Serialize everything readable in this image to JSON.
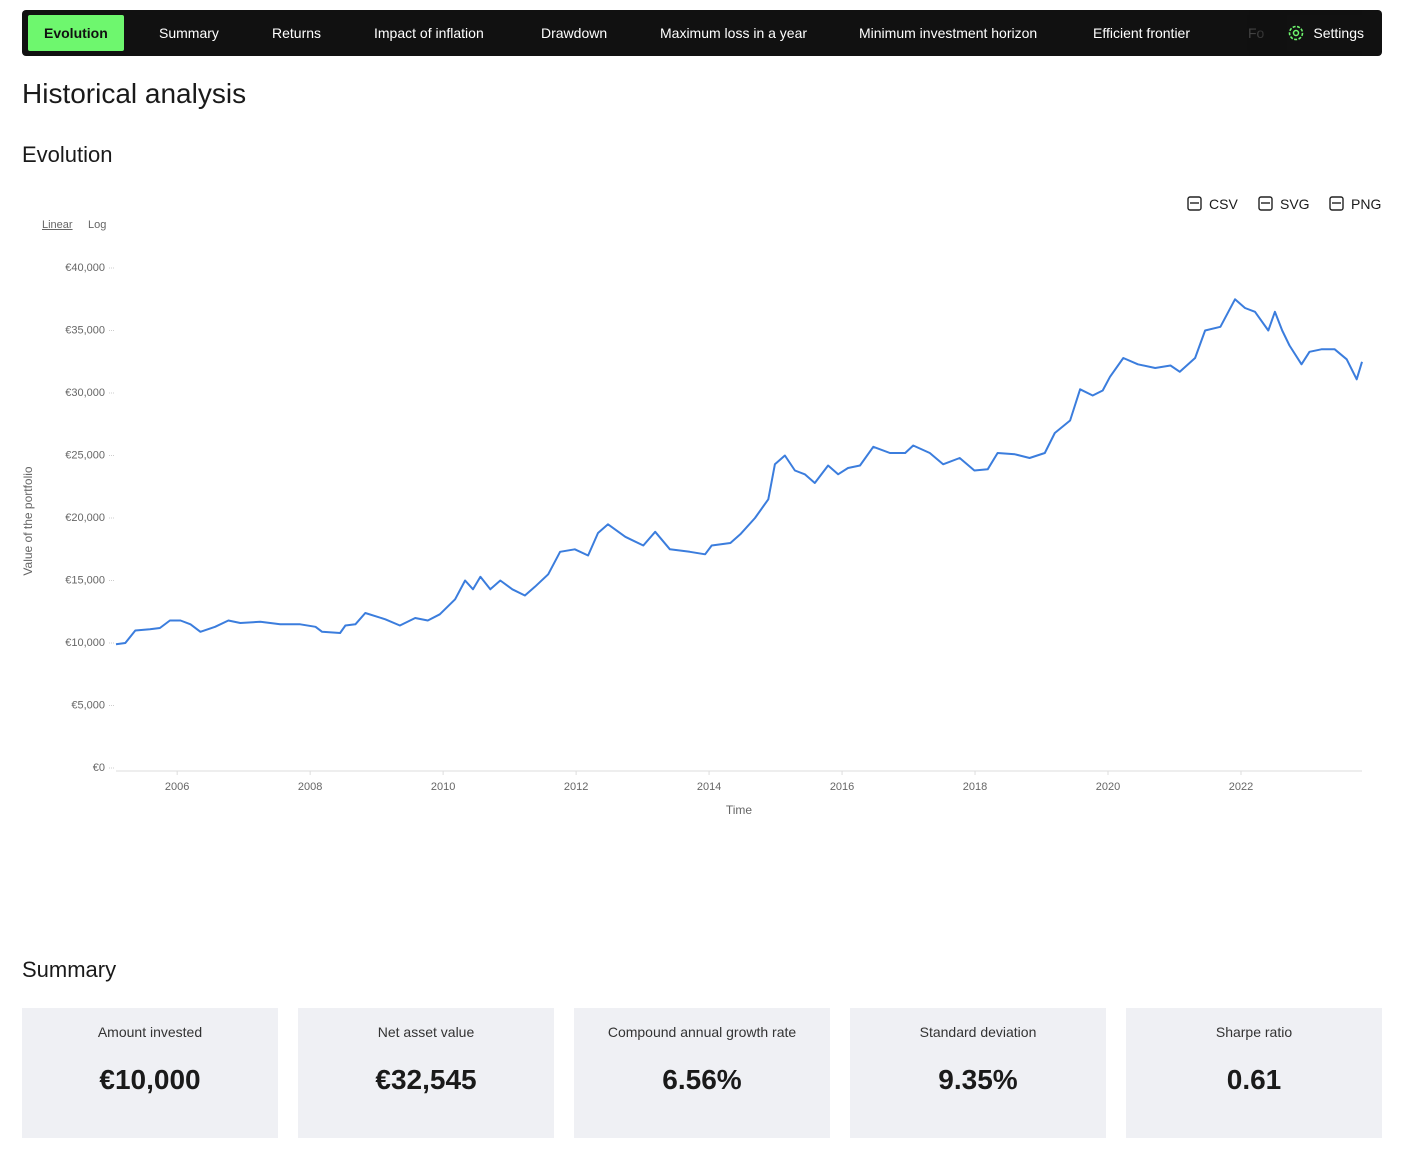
{
  "nav": {
    "tabs": [
      "Evolution",
      "Summary",
      "Returns",
      "Impact of inflation",
      "Drawdown",
      "Maximum loss in a year",
      "Minimum investment horizon",
      "Efficient frontier",
      "Fo"
    ],
    "active": 0,
    "settings": "Settings"
  },
  "page_title": "Historical analysis",
  "section_title": "Evolution",
  "exports": [
    "CSV",
    "SVG",
    "PNG"
  ],
  "scale_options": [
    "Linear",
    "Log"
  ],
  "chart_data": {
    "type": "line",
    "x_label": "Time",
    "y_label": "Value of the portfolio",
    "log_scale": false,
    "grid": false,
    "color": "#3b7ddd",
    "x": [
      2005.08,
      2005.22,
      2005.37,
      2005.59,
      2005.74,
      2005.89,
      2006.05,
      2006.2,
      2006.35,
      2006.57,
      2006.77,
      2006.95,
      2007.25,
      2007.55,
      2007.85,
      2008.08,
      2008.18,
      2008.45,
      2008.53,
      2008.68,
      2008.83,
      2009.13,
      2009.35,
      2009.58,
      2009.77,
      2009.95,
      2010.18,
      2010.33,
      2010.45,
      2010.56,
      2010.71,
      2010.86,
      2011.04,
      2011.23,
      2011.38,
      2011.58,
      2011.76,
      2011.98,
      2012.18,
      2012.33,
      2012.48,
      2012.74,
      2013.01,
      2013.19,
      2013.41,
      2013.71,
      2013.94,
      2014.04,
      2014.32,
      2014.47,
      2014.69,
      2014.89,
      2014.99,
      2015.14,
      2015.29,
      2015.44,
      2015.59,
      2015.79,
      2015.94,
      2016.09,
      2016.27,
      2016.47,
      2016.72,
      2016.95,
      2017.07,
      2017.32,
      2017.52,
      2017.77,
      2017.99,
      2018.19,
      2018.34,
      2018.6,
      2018.82,
      2019.05,
      2019.2,
      2019.43,
      2019.58,
      2019.77,
      2019.92,
      2020.03,
      2020.23,
      2020.45,
      2020.71,
      2020.94,
      2021.08,
      2021.31,
      2021.46,
      2021.69,
      2021.91,
      2022.06,
      2022.21,
      2022.41,
      2022.51,
      2022.62,
      2022.73,
      2022.91,
      2023.03,
      2023.21,
      2023.41,
      2023.59,
      2023.74,
      2023.82
    ],
    "values": [
      9900,
      10000,
      11000,
      11100,
      11200,
      11800,
      11800,
      11500,
      10900,
      11300,
      11800,
      11600,
      11700,
      11500,
      11500,
      11300,
      10900,
      10800,
      11400,
      11500,
      12400,
      11900,
      11400,
      12000,
      11800,
      12300,
      13500,
      15000,
      14300,
      15300,
      14300,
      15000,
      14300,
      13800,
      14500,
      15500,
      17300,
      17500,
      17000,
      18800,
      19500,
      18500,
      17800,
      18900,
      17500,
      17300,
      17100,
      17800,
      18000,
      18700,
      20000,
      21500,
      24300,
      25000,
      23800,
      23500,
      22800,
      24200,
      23500,
      24000,
      24200,
      25700,
      25200,
      25200,
      25800,
      25200,
      24300,
      24800,
      23800,
      23900,
      25200,
      25100,
      24800,
      25200,
      26800,
      27800,
      30300,
      29800,
      30200,
      31300,
      32800,
      32300,
      32000,
      32200,
      31700,
      32800,
      35000,
      35300,
      37500,
      36800,
      36500,
      35000,
      36500,
      35000,
      33800,
      32300,
      33300,
      33500,
      33500,
      32700,
      31100,
      32500
    ],
    "xlim": [
      2005.08,
      2023.82
    ],
    "ylim": [
      0,
      40000
    ],
    "xticks": [
      2006,
      2008,
      2010,
      2012,
      2014,
      2016,
      2018,
      2020,
      2022
    ],
    "yticks": [
      {
        "value": 0,
        "label": "€0"
      },
      {
        "value": 5000,
        "label": "€5,000"
      },
      {
        "value": 10000,
        "label": "€10,000"
      },
      {
        "value": 15000,
        "label": "€15,000"
      },
      {
        "value": 20000,
        "label": "€20,000"
      },
      {
        "value": 25000,
        "label": "€25,000"
      },
      {
        "value": 30000,
        "label": "€30,000"
      },
      {
        "value": 35000,
        "label": "€35,000"
      },
      {
        "value": 40000,
        "label": "€40,000"
      }
    ]
  },
  "summary": {
    "title": "Summary",
    "cards": [
      {
        "label": "Amount invested",
        "value": "€10,000"
      },
      {
        "label": "Net asset value",
        "value": "€32,545"
      },
      {
        "label": "Compound annual growth rate",
        "value": "6.56%"
      },
      {
        "label": "Standard deviation",
        "value": "9.35%"
      },
      {
        "label": "Sharpe ratio",
        "value": "0.61"
      }
    ]
  }
}
